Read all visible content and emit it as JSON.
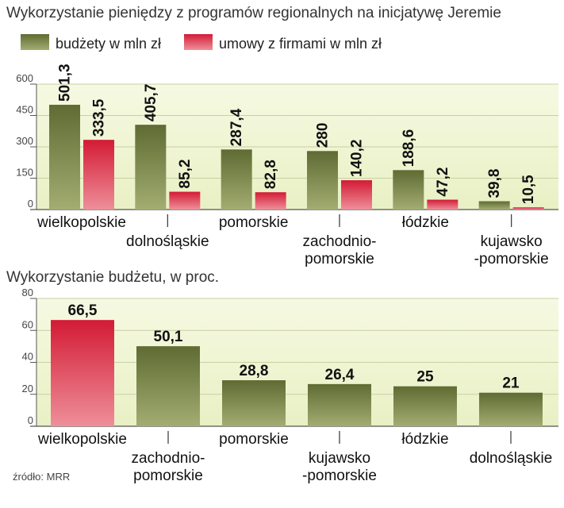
{
  "colors": {
    "budget_light": "#a3ad72",
    "budget_dark": "#5f6b33",
    "contract_light": "#ee8f9a",
    "contract_dark": "#d31b35",
    "bg_band_light": "#f6f9e2",
    "bg_band_dark": "#e9f0c4",
    "grid": "#c9cfa3",
    "axis": "#555555"
  },
  "source": "źródło: MRR",
  "chart_data": [
    {
      "type": "bar",
      "title": "Wykorzystanie pieniędzy z programów regionalnych na inicjatywę Jeremie",
      "legend": {
        "placement": "top-left",
        "items": [
          "budżety w mln zł",
          "umowy z firmami w mln zł"
        ]
      },
      "categories": [
        "wielkopolskie",
        "dolnośląskie",
        "pomorskie",
        "zachodnio-pomorskie",
        "łódzkie",
        "kujawsko-pomorskie"
      ],
      "category_label_lines": [
        [
          "wielkopolskie"
        ],
        [
          "dolnośląskie"
        ],
        [
          "pomorskie"
        ],
        [
          "zachodnio-",
          "pomorskie"
        ],
        [
          "łódzkie"
        ],
        [
          "kujawsko",
          "-pomorskie"
        ]
      ],
      "series": [
        {
          "name": "budżety w mln zł",
          "values": [
            501.3,
            405.7,
            287.4,
            280,
            188.6,
            39.8
          ],
          "labels": [
            "501,3",
            "405,7",
            "287,4",
            "280",
            "188,6",
            "39,8"
          ]
        },
        {
          "name": "umowy z firmami w mln zł",
          "values": [
            333.5,
            85.2,
            82.8,
            140.2,
            47.2,
            10.5
          ],
          "labels": [
            "333,5",
            "85,2",
            "82,8",
            "140,2",
            "47,2",
            "10,5"
          ]
        }
      ],
      "ylim": [
        0,
        600
      ],
      "yticks": [
        0,
        150,
        300,
        450,
        600
      ],
      "grid": true
    },
    {
      "type": "bar",
      "title": "Wykorzystanie budżetu, w proc.",
      "categories": [
        "wielkopolskie",
        "zachodnio-pomorskie",
        "pomorskie",
        "kujawsko-pomorskie",
        "łódzkie",
        "dolnośląskie"
      ],
      "category_label_lines": [
        [
          "wielkopolskie"
        ],
        [
          "zachodnio-",
          "pomorskie"
        ],
        [
          "pomorskie"
        ],
        [
          "kujawsko",
          "-pomorskie"
        ],
        [
          "łódzkie"
        ],
        [
          "dolnośląskie"
        ]
      ],
      "values": [
        66.5,
        50.1,
        28.8,
        26.4,
        25,
        21
      ],
      "labels": [
        "66,5",
        "50,1",
        "28,8",
        "26,4",
        "25",
        "21"
      ],
      "highlight_index": 0,
      "ylim": [
        0,
        80
      ],
      "yticks": [
        0,
        20,
        40,
        60,
        80
      ],
      "grid": true
    }
  ]
}
